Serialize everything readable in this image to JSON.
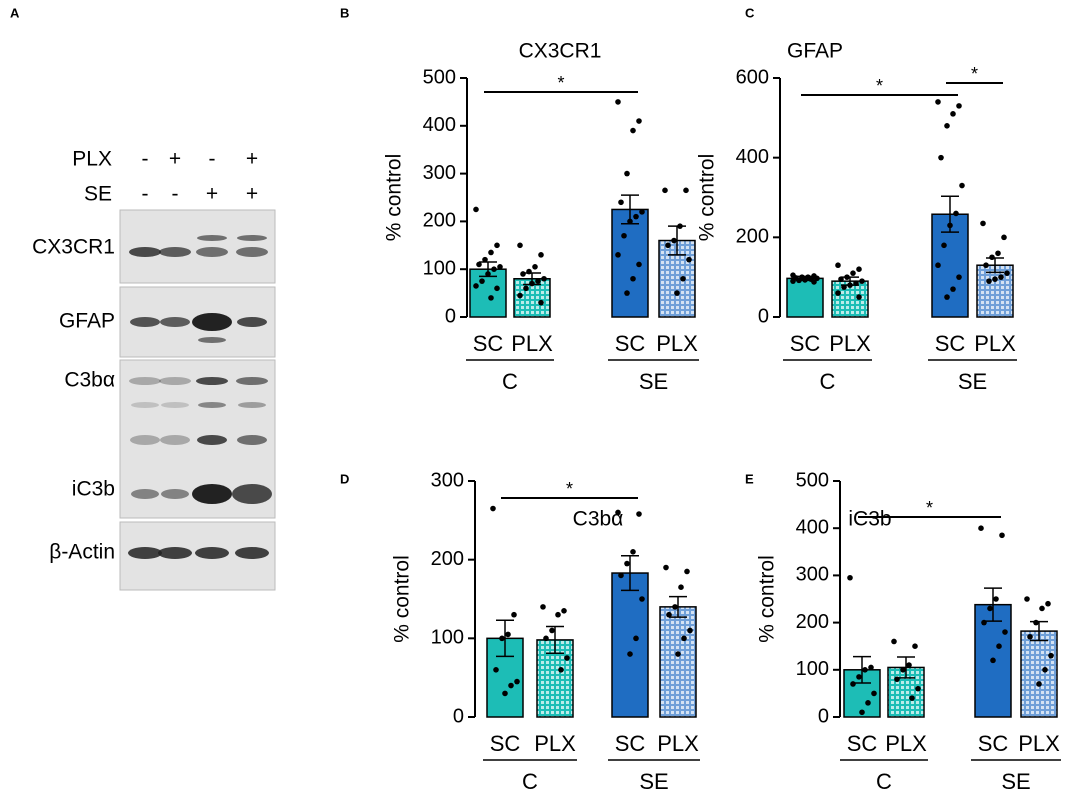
{
  "blot": {
    "label": "A",
    "treatments": [
      {
        "name": "PLX",
        "signs": [
          "-",
          "+",
          "-",
          "+"
        ]
      },
      {
        "name": "SE",
        "signs": [
          "-",
          "-",
          "+",
          "+"
        ]
      }
    ],
    "bands": [
      "CX3CR1",
      "GFAP",
      "C3bα",
      "iC3b",
      "β-Actin"
    ]
  },
  "chart_data": [
    {
      "type": "bar",
      "panel": "B",
      "title": "CX3CR1",
      "ylabel": "% control",
      "categories": [
        "SC",
        "PLX",
        "SC",
        "PLX"
      ],
      "groups": [
        "C",
        "SE"
      ],
      "values": [
        100,
        80,
        225,
        160
      ],
      "errors": [
        15,
        12,
        30,
        30
      ],
      "colors": [
        "#1dbdb6",
        "#1dbdb6",
        "#1f6dc2",
        "#6f9fd8"
      ],
      "patterned": [
        false,
        true,
        false,
        true
      ],
      "points": [
        [
          225,
          150,
          135,
          120,
          110,
          105,
          100,
          90,
          75,
          65,
          60,
          40
        ],
        [
          150,
          130,
          105,
          95,
          90,
          80,
          75,
          70,
          60,
          45,
          30
        ],
        [
          450,
          410,
          390,
          300,
          240,
          220,
          210,
          200,
          170,
          130,
          110,
          80,
          50
        ],
        [
          265,
          265,
          190,
          160,
          150,
          120,
          80,
          50
        ]
      ],
      "ylim": [
        0,
        500
      ],
      "yticks": [
        0,
        100,
        200,
        300,
        400,
        500
      ],
      "significance": [
        {
          "from": 0,
          "to": 2,
          "label": "*"
        }
      ]
    },
    {
      "type": "bar",
      "panel": "C",
      "title": "GFAP",
      "ylabel": "% control",
      "categories": [
        "SC",
        "PLX",
        "SC",
        "PLX"
      ],
      "groups": [
        "C",
        "SE"
      ],
      "values": [
        97,
        90,
        258,
        130
      ],
      "errors": [
        5,
        10,
        45,
        18
      ],
      "colors": [
        "#1dbdb6",
        "#1dbdb6",
        "#1f6dc2",
        "#6f9fd8"
      ],
      "patterned": [
        false,
        true,
        false,
        true
      ],
      "points": [
        [
          105,
          103,
          100,
          100,
          98,
          97,
          95,
          93,
          92,
          90,
          88
        ],
        [
          130,
          120,
          110,
          100,
          95,
          90,
          85,
          80,
          75,
          60,
          50
        ],
        [
          540,
          530,
          510,
          480,
          400,
          330,
          260,
          230,
          180,
          130,
          100,
          70,
          50
        ],
        [
          235,
          200,
          160,
          150,
          130,
          110,
          100,
          95,
          90
        ]
      ],
      "ylim": [
        0,
        600
      ],
      "yticks": [
        0,
        200,
        400,
        600
      ],
      "significance": [
        {
          "from": 0,
          "to": 2,
          "label": "*"
        },
        {
          "from": 2,
          "to": 3,
          "label": "*"
        }
      ]
    },
    {
      "type": "bar",
      "panel": "D",
      "title": "C3bα",
      "ylabel": "% control",
      "categories": [
        "SC",
        "PLX",
        "SC",
        "PLX"
      ],
      "groups": [
        "C",
        "SE"
      ],
      "values": [
        100,
        98,
        183,
        140
      ],
      "errors": [
        23,
        17,
        22,
        13
      ],
      "colors": [
        "#1dbdb6",
        "#1dbdb6",
        "#1f6dc2",
        "#6f9fd8"
      ],
      "patterned": [
        false,
        true,
        false,
        true
      ],
      "points": [
        [
          265,
          130,
          105,
          100,
          60,
          45,
          40,
          30
        ],
        [
          140,
          135,
          130,
          110,
          100,
          75,
          60
        ],
        [
          260,
          258,
          210,
          195,
          180,
          150,
          100,
          80
        ],
        [
          190,
          185,
          165,
          140,
          130,
          110,
          100,
          80
        ]
      ],
      "ylim": [
        0,
        300
      ],
      "yticks": [
        0,
        100,
        200,
        300
      ],
      "significance": [
        {
          "from": 0,
          "to": 2,
          "label": "*"
        }
      ]
    },
    {
      "type": "bar",
      "panel": "E",
      "title": "iC3b",
      "ylabel": "% control",
      "categories": [
        "SC",
        "PLX",
        "SC",
        "PLX"
      ],
      "groups": [
        "C",
        "SE"
      ],
      "values": [
        100,
        105,
        238,
        182
      ],
      "errors": [
        28,
        22,
        35,
        20
      ],
      "colors": [
        "#1dbdb6",
        "#1dbdb6",
        "#1f6dc2",
        "#6f9fd8"
      ],
      "patterned": [
        false,
        true,
        false,
        true
      ],
      "points": [
        [
          295,
          105,
          100,
          85,
          70,
          50,
          30,
          10
        ],
        [
          160,
          150,
          110,
          100,
          80,
          60,
          40
        ],
        [
          400,
          385,
          250,
          230,
          200,
          180,
          150,
          120
        ],
        [
          250,
          240,
          230,
          200,
          170,
          130,
          100,
          70
        ]
      ],
      "ylim": [
        0,
        500
      ],
      "yticks": [
        0,
        100,
        200,
        300,
        400,
        500
      ],
      "significance": [
        {
          "from": 0,
          "to": 2,
          "label": "*"
        }
      ]
    }
  ]
}
